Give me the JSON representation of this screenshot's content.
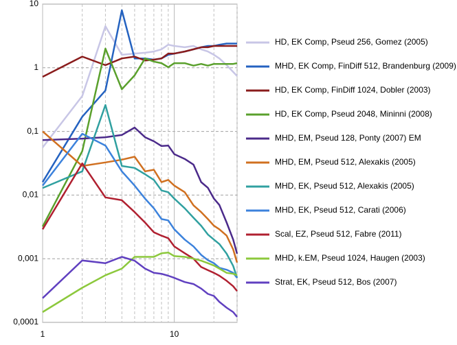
{
  "chart_data": {
    "type": "line",
    "log_x": true,
    "log_y": true,
    "grid": true,
    "xlim": [
      1,
      30
    ],
    "xticks": [
      1,
      10
    ],
    "xminor": [
      2,
      3,
      4,
      5,
      6,
      7,
      8,
      9,
      20,
      30
    ],
    "ylim": [
      0.0001,
      10
    ],
    "yticks": [
      {
        "value": 0.0001,
        "label": "0,0001"
      },
      {
        "value": 0.001,
        "label": "0,001"
      },
      {
        "value": 0.01,
        "label": "0,01"
      },
      {
        "value": 0.1,
        "label": "0,1"
      },
      1,
      10
    ],
    "x": [
      1,
      2,
      3,
      4,
      5,
      6,
      7,
      8,
      9,
      10,
      12,
      14,
      16,
      18,
      20,
      22,
      25,
      28,
      30
    ],
    "series": [
      {
        "name": "HD, EK Comp, Pseud 256, Gomez (2005)",
        "color": "#c8c6e6",
        "values": [
          0.056,
          0.36,
          4.5,
          1.6,
          1.67,
          1.72,
          1.8,
          1.95,
          2.3,
          2.2,
          2.1,
          2.2,
          1.95,
          1.8,
          1.6,
          1.4,
          1.1,
          0.86,
          0.74
        ]
      },
      {
        "name": "MHD, EK Comp, FinDiff 512, Brandenburg (2009)",
        "color": "#2462c0",
        "values": [
          0.016,
          0.17,
          0.44,
          8,
          1.4,
          1.4,
          1.34,
          1.4,
          1.6,
          1.67,
          1.8,
          1.95,
          2.1,
          2.2,
          2.2,
          2.3,
          2.4,
          2.4,
          2.4
        ]
      },
      {
        "name": "HD, EK Comp, FinDiff 1024, Dobler (2003)",
        "color": "#8a1c1c",
        "values": [
          0.72,
          1.5,
          1.1,
          1.4,
          1.5,
          1.3,
          1.34,
          1.4,
          1.67,
          1.67,
          1.8,
          1.95,
          2.1,
          2.1,
          2.2,
          2.2,
          2.2,
          2.2,
          2.2
        ]
      },
      {
        "name": "HD, EK Comp, Pseud 2048, Mininni (2008)",
        "color": "#5aa02c",
        "values": [
          0.0032,
          0.049,
          2,
          0.46,
          0.76,
          1.4,
          1.25,
          1.18,
          1.02,
          1.18,
          1.18,
          1.08,
          1.15,
          1.08,
          1.15,
          1.15,
          1.15,
          1.15,
          1.18
        ]
      },
      {
        "name": "MHD, EM, Pseud 128, Ponty (2007) EM",
        "color": "#4b2a8a",
        "values": [
          0.073,
          0.077,
          0.081,
          0.088,
          0.115,
          0.081,
          0.07,
          0.059,
          0.06,
          0.044,
          0.037,
          0.03,
          0.016,
          0.013,
          0.0088,
          0.007,
          0.0037,
          0.002,
          0.0012
        ]
      },
      {
        "name": "MHD, EM, Pseud 512, Alexakis (2005)",
        "color": "#d07020",
        "values": [
          0.1,
          0.0286,
          0.0326,
          0.036,
          0.04,
          0.0236,
          0.025,
          0.016,
          0.0173,
          0.0141,
          0.0111,
          0.0069,
          0.0054,
          0.0042,
          0.0033,
          0.0029,
          0.0023,
          0.0014,
          0.00087
        ]
      },
      {
        "name": "MHD, EK, Pseud 512, Alexakis (2005)",
        "color": "#30a0a0",
        "values": [
          0.0129,
          0.0236,
          0.26,
          0.0286,
          0.0267,
          0.0212,
          0.0173,
          0.0118,
          0.0111,
          0.0088,
          0.0062,
          0.0044,
          0.0033,
          0.0024,
          0.002,
          0.0017,
          0.0012,
          0.00077,
          0.0005
        ]
      },
      {
        "name": "MHD, EK, Pseud 512, Carati (2006)",
        "color": "#3c82dc",
        "values": [
          0.0141,
          0.092,
          0.06,
          0.0236,
          0.0141,
          0.0088,
          0.0062,
          0.0042,
          0.004,
          0.0029,
          0.002,
          0.00156,
          0.00115,
          0.00095,
          0.00085,
          0.00072,
          0.00067,
          0.0006,
          0.0005
        ]
      },
      {
        "name": "Scal, EZ, Pseud 512, Fabre (2011)",
        "color": "#b02030",
        "values": [
          0.0029,
          0.0315,
          0.0092,
          0.0083,
          0.0054,
          0.0037,
          0.0026,
          0.0023,
          0.0021,
          0.00156,
          0.00122,
          0.001,
          0.00074,
          0.00066,
          0.0006,
          0.00054,
          0.00045,
          0.00037,
          0.00031
        ]
      },
      {
        "name": "MHD, k.EM, Pseud 1024, Haugen (2003)",
        "color": "#8cc83c",
        "values": [
          0.000145,
          0.00035,
          0.00055,
          0.0007,
          0.00107,
          0.00107,
          0.00107,
          0.00122,
          0.00125,
          0.0011,
          0.00107,
          0.001,
          0.00093,
          0.00085,
          0.00078,
          0.0007,
          0.0006,
          0.00058,
          0.00055
        ]
      },
      {
        "name": "Strat, EK, Pseud 512, Bos (2007)",
        "color": "#6040c0",
        "values": [
          0.00024,
          0.00094,
          0.00085,
          0.00107,
          0.00093,
          0.0007,
          0.0006,
          0.00058,
          0.00054,
          0.0005,
          0.00043,
          0.0004,
          0.00034,
          0.00028,
          0.00026,
          0.00021,
          0.00017,
          0.000145,
          0.000122
        ]
      }
    ]
  }
}
